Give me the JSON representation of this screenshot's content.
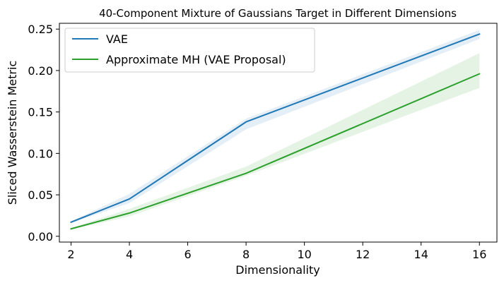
{
  "chart_data": {
    "type": "line",
    "title": "40-Component Mixture of Gaussians Target in Different Dimensions",
    "xlabel": "Dimensionality",
    "ylabel": "Sliced Wasserstein Metric",
    "x": [
      2,
      4,
      8,
      16
    ],
    "xlim": [
      1.6,
      16.6
    ],
    "ylim": [
      -0.007,
      0.257
    ],
    "xticks": [
      2,
      4,
      6,
      8,
      10,
      12,
      14,
      16
    ],
    "xtick_labels": [
      "2",
      "4",
      "6",
      "8",
      "10",
      "12",
      "14",
      "16"
    ],
    "yticks": [
      0.0,
      0.05,
      0.1,
      0.15,
      0.2,
      0.25
    ],
    "ytick_labels": [
      "0.00",
      "0.05",
      "0.10",
      "0.15",
      "0.20",
      "0.25"
    ],
    "grid": false,
    "legend_position": "top-left",
    "series": [
      {
        "name": "VAE",
        "color": "#1f77b4",
        "values": [
          0.017,
          0.045,
          0.138,
          0.244
        ],
        "lower": [
          0.016,
          0.04,
          0.129,
          0.238
        ],
        "upper": [
          0.018,
          0.051,
          0.142,
          0.249
        ]
      },
      {
        "name": "Approximate MH (VAE Proposal)",
        "color": "#2ca02c",
        "values": [
          0.009,
          0.028,
          0.076,
          0.196
        ],
        "lower": [
          0.008,
          0.024,
          0.073,
          0.179
        ],
        "upper": [
          0.01,
          0.033,
          0.084,
          0.221
        ]
      }
    ]
  }
}
